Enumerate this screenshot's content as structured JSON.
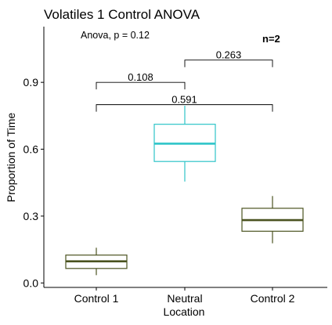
{
  "chart_data": {
    "type": "boxplot",
    "title": "Volatiles 1 Control ANOVA",
    "xlabel": "Location",
    "ylabel": "Proportion of Time",
    "categories": [
      "Control 1",
      "Neutral",
      "Control 2"
    ],
    "boxes": [
      {
        "category": "Control 1",
        "min": 0.035,
        "q1": 0.065,
        "median": 0.097,
        "q3": 0.125,
        "max": 0.158,
        "color": "#4b5320"
      },
      {
        "category": "Neutral",
        "min": 0.455,
        "q1": 0.545,
        "median": 0.625,
        "q3": 0.712,
        "max": 0.795,
        "color": "#2ec4c8"
      },
      {
        "category": "Control 2",
        "min": 0.178,
        "q1": 0.232,
        "median": 0.282,
        "q3": 0.335,
        "max": 0.39,
        "color": "#4b5320"
      }
    ],
    "yticks": [
      0.0,
      0.3,
      0.6,
      0.9
    ],
    "ytick_labels": [
      "0.0",
      "0.3",
      "0.6",
      "0.9"
    ],
    "ylim": [
      -0.02,
      1.15
    ],
    "annotations": {
      "anova": "Anova, p = 0.12",
      "n_label": "n=2"
    },
    "comparisons": [
      {
        "from": "Control 1",
        "to": "Neutral",
        "p_label": "0.108",
        "y": 0.9
      },
      {
        "from": "Neutral",
        "to": "Control 2",
        "p_label": "0.263",
        "y": 1.0
      },
      {
        "from": "Control 1",
        "to": "Control 2",
        "p_label": "0.591",
        "y": 0.8
      }
    ],
    "grid": false,
    "legend": "none"
  }
}
